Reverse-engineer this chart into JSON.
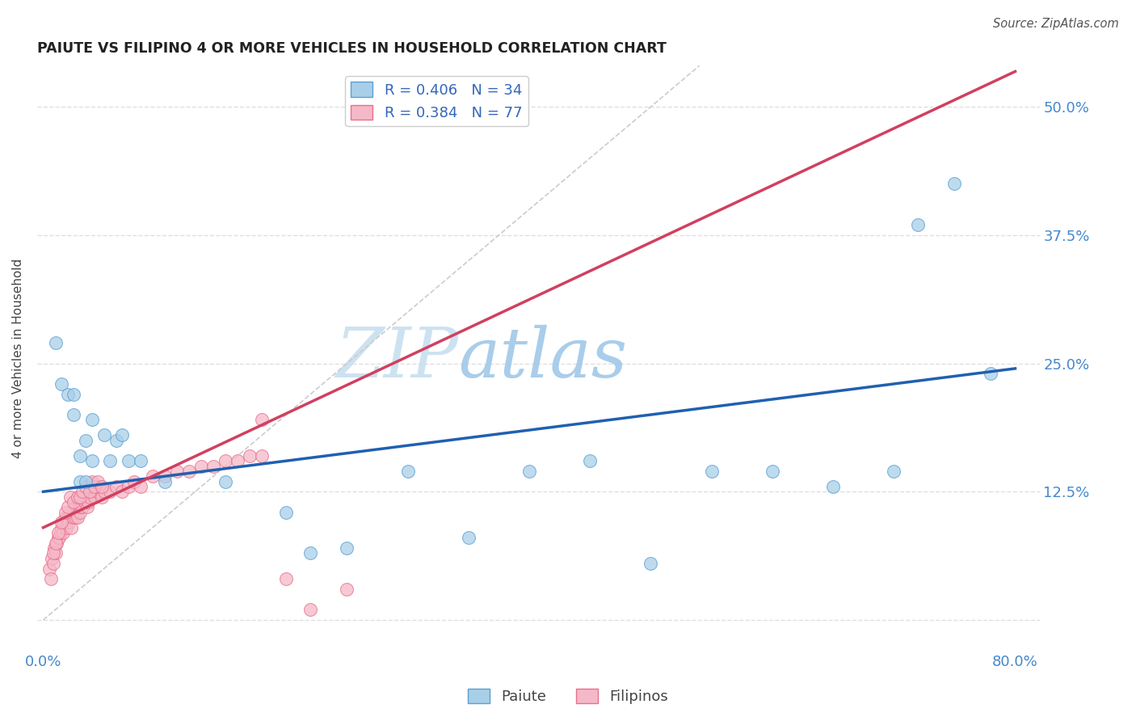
{
  "title": "PAIUTE VS FILIPINO 4 OR MORE VEHICLES IN HOUSEHOLD CORRELATION CHART",
  "source": "Source: ZipAtlas.com",
  "ylabel": "4 or more Vehicles in Household",
  "xlabel_paiute": "Paiute",
  "xlabel_filipinos": "Filipinos",
  "watermark_zip": "ZIP",
  "watermark_atlas": "atlas",
  "xlim": [
    -0.005,
    0.82
  ],
  "ylim": [
    -0.03,
    0.54
  ],
  "paiute_R": 0.406,
  "paiute_N": 34,
  "filipinos_R": 0.384,
  "filipinos_N": 77,
  "paiute_color": "#a8cfe8",
  "filipinos_color": "#f5b8c8",
  "paiute_edge_color": "#5a9fd4",
  "filipinos_edge_color": "#e8708a",
  "paiute_line_color": "#2060b0",
  "filipinos_line_color": "#d04060",
  "diagonal_color": "#cccccc",
  "grid_color": "#e0e0e0",
  "paiute_line_x0": 0.0,
  "paiute_line_y0": 0.125,
  "paiute_line_x1": 0.8,
  "paiute_line_y1": 0.245,
  "filipinos_line_x0": 0.0,
  "filipinos_line_y0": 0.09,
  "filipinos_line_x1": 0.18,
  "filipinos_line_y1": 0.19,
  "paiute_x": [
    0.01,
    0.015,
    0.02,
    0.025,
    0.03,
    0.035,
    0.04,
    0.05,
    0.06,
    0.07,
    0.08,
    0.1,
    0.15,
    0.2,
    0.22,
    0.25,
    0.3,
    0.35,
    0.5,
    0.55,
    0.6,
    0.65,
    0.7,
    0.72,
    0.75,
    0.78,
    0.025,
    0.03,
    0.035,
    0.04,
    0.055,
    0.065,
    0.4,
    0.45
  ],
  "paiute_y": [
    0.27,
    0.23,
    0.22,
    0.2,
    0.135,
    0.175,
    0.155,
    0.18,
    0.175,
    0.155,
    0.155,
    0.135,
    0.135,
    0.105,
    0.065,
    0.07,
    0.145,
    0.08,
    0.055,
    0.145,
    0.145,
    0.13,
    0.145,
    0.385,
    0.425,
    0.24,
    0.22,
    0.16,
    0.135,
    0.195,
    0.155,
    0.18,
    0.145,
    0.155
  ],
  "filipinos_x": [
    0.005,
    0.006,
    0.007,
    0.008,
    0.009,
    0.01,
    0.011,
    0.012,
    0.013,
    0.014,
    0.015,
    0.016,
    0.017,
    0.018,
    0.019,
    0.02,
    0.021,
    0.022,
    0.023,
    0.024,
    0.025,
    0.026,
    0.027,
    0.028,
    0.029,
    0.03,
    0.031,
    0.032,
    0.033,
    0.034,
    0.035,
    0.036,
    0.037,
    0.038,
    0.04,
    0.042,
    0.044,
    0.046,
    0.048,
    0.05,
    0.055,
    0.06,
    0.065,
    0.07,
    0.075,
    0.08,
    0.09,
    0.1,
    0.11,
    0.12,
    0.13,
    0.14,
    0.15,
    0.16,
    0.17,
    0.18,
    0.2,
    0.22,
    0.25,
    0.008,
    0.01,
    0.012,
    0.015,
    0.018,
    0.02,
    0.022,
    0.025,
    0.028,
    0.03,
    0.032,
    0.035,
    0.038,
    0.04,
    0.042,
    0.045,
    0.048,
    0.18
  ],
  "filipinos_y": [
    0.05,
    0.04,
    0.06,
    0.055,
    0.07,
    0.065,
    0.075,
    0.08,
    0.08,
    0.085,
    0.09,
    0.085,
    0.095,
    0.1,
    0.09,
    0.1,
    0.095,
    0.105,
    0.09,
    0.1,
    0.105,
    0.1,
    0.11,
    0.1,
    0.11,
    0.105,
    0.11,
    0.11,
    0.12,
    0.115,
    0.12,
    0.11,
    0.115,
    0.12,
    0.13,
    0.12,
    0.125,
    0.13,
    0.12,
    0.125,
    0.125,
    0.13,
    0.125,
    0.13,
    0.135,
    0.13,
    0.14,
    0.14,
    0.145,
    0.145,
    0.15,
    0.15,
    0.155,
    0.155,
    0.16,
    0.16,
    0.04,
    0.01,
    0.03,
    0.065,
    0.075,
    0.085,
    0.095,
    0.105,
    0.11,
    0.12,
    0.115,
    0.12,
    0.12,
    0.125,
    0.13,
    0.125,
    0.135,
    0.13,
    0.135,
    0.13,
    0.195
  ]
}
